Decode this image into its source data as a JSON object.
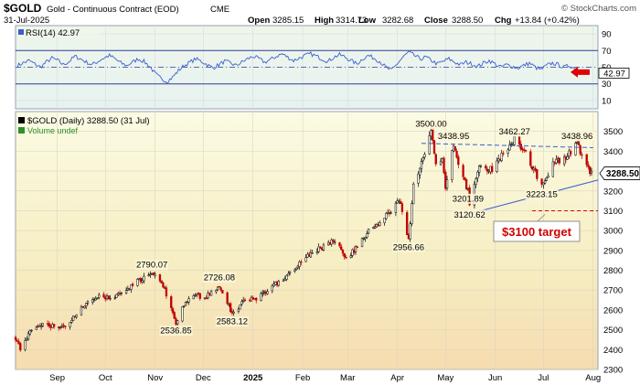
{
  "header": {
    "symbol": "$GOLD",
    "description": "Gold - Continuous Contract (EOD)",
    "exchange": "CME",
    "date": "31-Jul-2025",
    "open_label": "Open",
    "open": "3285.15",
    "high_label": "High",
    "high": "3314.73",
    "low_label": "Low",
    "low": "3282.68",
    "close_label": "Close",
    "close": "3288.50",
    "chg_label": "Chg",
    "chg": "+13.84 (+0.42%)",
    "watermark": "© StockCharts.com"
  },
  "rsi_panel": {
    "title": "RSI(14) 42.97",
    "value": 42.97,
    "value_label": "42.97",
    "ticks": [
      10,
      30,
      50,
      70,
      90
    ],
    "tick_labels": [
      "10",
      "30",
      "50",
      "70",
      "90"
    ],
    "overbought": 70,
    "oversold": 30,
    "midline": 50,
    "ylim": [
      0,
      100
    ],
    "arrow_color": "#e00000",
    "line_color": "#3a5fd0"
  },
  "price_panel": {
    "title": "$GOLD (Daily) 3288.50 (31 Jul)",
    "volume_label": "Volume undef",
    "last_price_label": "3288.50",
    "target_label": "$3100 target",
    "target_color": "#d00000",
    "trendline_color": "#3a5fd0"
  },
  "chart_data": [
    {
      "type": "line",
      "title": "RSI(14) 42.97",
      "series": [
        {
          "name": "RSI(14)",
          "values": [
            52,
            55,
            58,
            54,
            50,
            56,
            61,
            58,
            53,
            57,
            63,
            60,
            56,
            53,
            57,
            61,
            64,
            60,
            55,
            52,
            56,
            60,
            57,
            51,
            42,
            36,
            33,
            38,
            46,
            52,
            56,
            60,
            57,
            53,
            49,
            53,
            57,
            55,
            52,
            56,
            60,
            63,
            60,
            56,
            59,
            63,
            66,
            62,
            58,
            61,
            64,
            66,
            63,
            60,
            57,
            62,
            65,
            62,
            58,
            54,
            60,
            64,
            61,
            57,
            50,
            46,
            54,
            62,
            68,
            64,
            60,
            62,
            58,
            54,
            57,
            60,
            56,
            53,
            56,
            54,
            51,
            55,
            58,
            54,
            50,
            53,
            51,
            49,
            52,
            55,
            50,
            47,
            52,
            55,
            53,
            50,
            52,
            48,
            46,
            43
          ]
        }
      ],
      "ylim": [
        0,
        100
      ],
      "yticks": [
        10,
        30,
        50,
        70,
        90
      ]
    },
    {
      "type": "candlestick",
      "title": "$GOLD (Daily) 3288.50 (31 Jul)",
      "x_range": [
        "2024-08-06",
        "2025-08-04"
      ],
      "ylim": [
        2300,
        3600
      ],
      "yticks": [
        2300,
        2400,
        2500,
        2600,
        2700,
        2800,
        2900,
        3000,
        3100,
        3200,
        3300,
        3400,
        3500
      ],
      "ytick_labels": [
        "2300",
        "2400",
        "2500",
        "2600",
        "2700",
        "2800",
        "2900",
        "3000",
        "3100",
        "3200",
        "3300",
        "3400",
        "3500"
      ],
      "xticks": [
        {
          "date": "2024-09-01",
          "label": "Sep"
        },
        {
          "date": "2024-10-01",
          "label": "Oct"
        },
        {
          "date": "2024-11-01",
          "label": "Nov"
        },
        {
          "date": "2024-12-01",
          "label": "Dec"
        },
        {
          "date": "2025-01-01",
          "label": "2025"
        },
        {
          "date": "2025-02-01",
          "label": "Feb"
        },
        {
          "date": "2025-03-01",
          "label": "Mar"
        },
        {
          "date": "2025-04-01",
          "label": "Apr"
        },
        {
          "date": "2025-05-01",
          "label": "May"
        },
        {
          "date": "2025-06-01",
          "label": "Jun"
        },
        {
          "date": "2025-07-01",
          "label": "Jul"
        },
        {
          "date": "2025-08-01",
          "label": "Aug"
        }
      ],
      "close_path": [
        {
          "date": "2024-08-06",
          "value": 2460
        },
        {
          "date": "2024-08-09",
          "value": 2400
        },
        {
          "date": "2024-08-16",
          "value": 2500
        },
        {
          "date": "2024-08-23",
          "value": 2525
        },
        {
          "date": "2024-08-30",
          "value": 2520
        },
        {
          "date": "2024-09-06",
          "value": 2510
        },
        {
          "date": "2024-09-13",
          "value": 2580
        },
        {
          "date": "2024-09-20",
          "value": 2640
        },
        {
          "date": "2024-09-27",
          "value": 2670
        },
        {
          "date": "2024-10-04",
          "value": 2660
        },
        {
          "date": "2024-10-11",
          "value": 2680
        },
        {
          "date": "2024-10-18",
          "value": 2730
        },
        {
          "date": "2024-10-30",
          "value": 2790.07
        },
        {
          "date": "2024-11-05",
          "value": 2740
        },
        {
          "date": "2024-11-10",
          "value": 2640
        },
        {
          "date": "2024-11-14",
          "value": 2536.85
        },
        {
          "date": "2024-11-20",
          "value": 2640
        },
        {
          "date": "2024-11-25",
          "value": 2680
        },
        {
          "date": "2024-12-02",
          "value": 2660
        },
        {
          "date": "2024-12-11",
          "value": 2726.08
        },
        {
          "date": "2024-12-19",
          "value": 2583.12
        },
        {
          "date": "2024-12-26",
          "value": 2640
        },
        {
          "date": "2025-01-03",
          "value": 2660
        },
        {
          "date": "2025-01-10",
          "value": 2700
        },
        {
          "date": "2025-01-17",
          "value": 2740
        },
        {
          "date": "2025-01-24",
          "value": 2790
        },
        {
          "date": "2025-01-31",
          "value": 2840
        },
        {
          "date": "2025-02-07",
          "value": 2890
        },
        {
          "date": "2025-02-14",
          "value": 2920
        },
        {
          "date": "2025-02-21",
          "value": 2950
        },
        {
          "date": "2025-02-28",
          "value": 2860
        },
        {
          "date": "2025-03-07",
          "value": 2920
        },
        {
          "date": "2025-03-14",
          "value": 3000
        },
        {
          "date": "2025-03-21",
          "value": 3040
        },
        {
          "date": "2025-03-28",
          "value": 3100
        },
        {
          "date": "2025-04-02",
          "value": 3160
        },
        {
          "date": "2025-04-08",
          "value": 2956.66
        },
        {
          "date": "2025-04-11",
          "value": 3230
        },
        {
          "date": "2025-04-16",
          "value": 3340
        },
        {
          "date": "2025-04-22",
          "value": 3500.0
        },
        {
          "date": "2025-04-25",
          "value": 3330
        },
        {
          "date": "2025-04-29",
          "value": 3350
        },
        {
          "date": "2025-05-01",
          "value": 3210
        },
        {
          "date": "2025-05-06",
          "value": 3438.95
        },
        {
          "date": "2025-05-09",
          "value": 3330
        },
        {
          "date": "2025-05-15",
          "value": 3201.89
        },
        {
          "date": "2025-05-16",
          "value": 3120.62
        },
        {
          "date": "2025-05-22",
          "value": 3320
        },
        {
          "date": "2025-05-30",
          "value": 3310
        },
        {
          "date": "2025-06-05",
          "value": 3380
        },
        {
          "date": "2025-06-13",
          "value": 3462.27
        },
        {
          "date": "2025-06-20",
          "value": 3390
        },
        {
          "date": "2025-06-26",
          "value": 3290
        },
        {
          "date": "2025-06-30",
          "value": 3223.15
        },
        {
          "date": "2025-07-07",
          "value": 3340
        },
        {
          "date": "2025-07-14",
          "value": 3360
        },
        {
          "date": "2025-07-22",
          "value": 3438.96
        },
        {
          "date": "2025-07-28",
          "value": 3320
        },
        {
          "date": "2025-07-31",
          "value": 3288.5
        }
      ],
      "annotations": [
        {
          "label": "2790.07",
          "date": "2024-10-30",
          "value": 2790.07,
          "position": "above"
        },
        {
          "label": "2536.85",
          "date": "2024-11-14",
          "value": 2536.85,
          "position": "below"
        },
        {
          "label": "2726.08",
          "date": "2024-12-11",
          "value": 2726.08,
          "position": "above"
        },
        {
          "label": "2583.12",
          "date": "2024-12-19",
          "value": 2583.12,
          "position": "below"
        },
        {
          "label": "2956.66",
          "date": "2025-04-08",
          "value": 2956.66,
          "position": "below"
        },
        {
          "label": "3500.00",
          "date": "2025-04-22",
          "value": 3500.0,
          "position": "above"
        },
        {
          "label": "3438.95",
          "date": "2025-05-06",
          "value": 3438.95,
          "position": "above"
        },
        {
          "label": "3201.89",
          "date": "2025-05-15",
          "value": 3201.89,
          "position": "below"
        },
        {
          "label": "3120.62",
          "date": "2025-05-16",
          "value": 3120.62,
          "position": "below"
        },
        {
          "label": "3462.27",
          "date": "2025-06-13",
          "value": 3462.27,
          "position": "above"
        },
        {
          "label": "3223.15",
          "date": "2025-06-30",
          "value": 3223.15,
          "position": "below"
        },
        {
          "label": "3438.96",
          "date": "2025-07-22",
          "value": 3438.96,
          "position": "above"
        }
      ],
      "trendlines": [
        {
          "from": {
            "date": "2025-04-16",
            "value": 3440
          },
          "to": {
            "date": "2025-08-01",
            "value": 3418
          },
          "style": "dashed"
        },
        {
          "from": {
            "date": "2025-05-16",
            "value": 3085
          },
          "to": {
            "date": "2025-08-04",
            "value": 3255
          },
          "style": "solid"
        }
      ],
      "target_line": {
        "from": "2025-06-24",
        "to": "2025-08-04",
        "value": 3100,
        "style": "dashed"
      },
      "target": {
        "value": 3100,
        "label": "$3100 target"
      },
      "last_price": 3288.5
    }
  ]
}
